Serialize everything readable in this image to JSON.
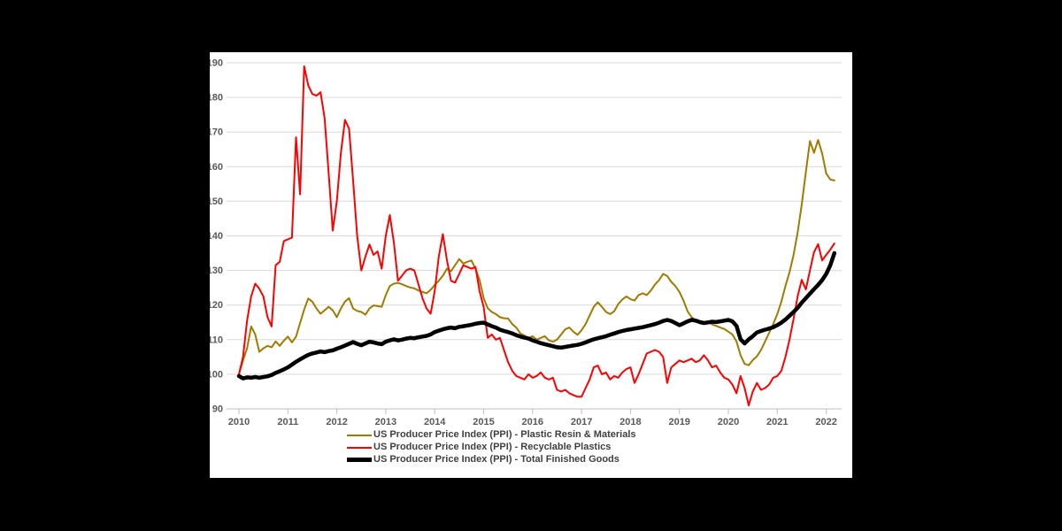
{
  "panel": {
    "background": "#ffffff",
    "outer_background": "#000000"
  },
  "axis": {
    "label_color": "#595959",
    "grid_color": "#d9d9d9",
    "axis_line_color": "#bfbfbf"
  },
  "chart_data": {
    "type": "line",
    "title": "",
    "xlabel": "",
    "ylabel": "",
    "ylim": [
      90,
      190
    ],
    "y_ticks": [
      90,
      100,
      110,
      120,
      130,
      140,
      150,
      160,
      170,
      180,
      190
    ],
    "x_tick_labels": [
      "2010",
      "2011",
      "2012",
      "2013",
      "2014",
      "2015",
      "2016",
      "2017",
      "2018",
      "2019",
      "2020",
      "2021",
      "2022"
    ],
    "x_monthly_start": "2010-01",
    "x_monthly_end": "2022-03",
    "grid": true,
    "legend_position": "bottom",
    "series": [
      {
        "name": "US Producer Price Index (PPI) - Plastic Resin & Materials",
        "color": "#A17A00",
        "width": 2,
        "monthly_values": [
          100,
          104,
          107.5,
          113.8,
          111.5,
          106.5,
          107.5,
          108.2,
          107.8,
          109.5,
          108.2,
          109.7,
          110.9,
          109.2,
          110.9,
          114.8,
          118.7,
          121.9,
          121.0,
          119.0,
          117.5,
          118.5,
          119.5,
          118.5,
          116.5,
          119.0,
          121.0,
          122.0,
          119.0,
          118.3,
          118.0,
          117.2,
          119.0,
          119.9,
          119.7,
          119.5,
          122.9,
          125.5,
          126.2,
          126.4,
          126.0,
          125.5,
          125.1,
          124.8,
          124.2,
          123.8,
          123.4,
          124.4,
          125.8,
          127.0,
          128.5,
          130.5,
          129.8,
          131.5,
          133.3,
          132.0,
          132.5,
          132.9,
          130.5,
          127.2,
          122.0,
          119.1,
          118.0,
          117.4,
          116.5,
          116.2,
          116.1,
          114.5,
          113.5,
          111.8,
          111.2,
          110.5,
          111.0,
          110.0,
          110.5,
          111.0,
          109.8,
          109.4,
          110.0,
          111.5,
          113.0,
          113.5,
          112.3,
          111.4,
          112.7,
          114.5,
          117.0,
          119.5,
          120.8,
          119.5,
          118.0,
          117.4,
          118.2,
          120.3,
          121.6,
          122.5,
          121.7,
          121.3,
          122.9,
          123.4,
          122.9,
          124.2,
          125.9,
          127.2,
          129.0,
          128.4,
          126.7,
          125.5,
          123.8,
          121.3,
          118.2,
          116.5,
          115.6,
          114.8,
          114.8,
          115.2,
          114.4,
          114.0,
          113.5,
          113.1,
          112.3,
          111.5,
          109.5,
          105.5,
          103.0,
          102.6,
          104.1,
          105.2,
          107.0,
          109.5,
          112.0,
          114.5,
          117.4,
          121.0,
          125.5,
          129.5,
          134.5,
          141.0,
          149.0,
          158.5,
          167.4,
          164.0,
          167.7,
          163.8,
          158.0,
          156.3,
          156.0
        ]
      },
      {
        "name": "US Producer Price Index (PPI) - Recyclable Plastics",
        "color": "#FF0000",
        "width": 2,
        "monthly_values": [
          100,
          105,
          115.5,
          122.5,
          126.2,
          124.7,
          122.5,
          116.5,
          113.8,
          131.5,
          132.5,
          138.5,
          139.0,
          139.5,
          168.5,
          152.0,
          189.0,
          183.5,
          181.0,
          180.5,
          181.5,
          174.0,
          158.0,
          141.5,
          150.0,
          164.0,
          173.5,
          171.0,
          156.0,
          140.0,
          130.0,
          134.0,
          137.5,
          134.5,
          135.5,
          130.5,
          140.0,
          146.0,
          138.0,
          127.0,
          128.5,
          130.0,
          130.5,
          130.0,
          126.0,
          122.0,
          119.0,
          117.5,
          124.0,
          134.0,
          140.5,
          133.0,
          127.0,
          126.5,
          129.0,
          131.5,
          131.0,
          130.5,
          131.0,
          124.0,
          119.5,
          110.5,
          111.5,
          110.0,
          110.5,
          107.0,
          103.5,
          101.0,
          99.5,
          99.0,
          98.5,
          100.0,
          99.0,
          99.5,
          100.5,
          99.0,
          98.5,
          99.0,
          95.5,
          95.0,
          95.5,
          94.5,
          94.0,
          93.5,
          93.5,
          96.0,
          98.5,
          102.0,
          102.5,
          100.0,
          100.5,
          98.5,
          99.5,
          99.0,
          100.5,
          101.5,
          102.0,
          97.5,
          100.0,
          103.0,
          106.0,
          106.5,
          107.0,
          106.5,
          105.0,
          97.5,
          102.0,
          103.0,
          104.0,
          103.5,
          104.0,
          104.5,
          103.5,
          104.0,
          105.5,
          104.0,
          102.0,
          102.5,
          100.5,
          99.0,
          98.5,
          97.0,
          94.5,
          99.5,
          96.0,
          91.0,
          95.0,
          97.5,
          95.5,
          96.0,
          97.0,
          99.0,
          99.5,
          101.0,
          105.0,
          110.0,
          116.0,
          122.5,
          127.3,
          124.5,
          130.0,
          135.3,
          137.6,
          132.9,
          134.5,
          136.0,
          137.8
        ]
      },
      {
        "name": "US Producer Price Index (PPI) - Total Finished Goods",
        "color": "#000000",
        "width": 4.5,
        "monthly_values": [
          99.5,
          98.8,
          99.1,
          99.0,
          99.2,
          99.0,
          99.2,
          99.4,
          99.8,
          100.4,
          100.9,
          101.4,
          102.0,
          102.8,
          103.6,
          104.3,
          105.0,
          105.6,
          106.0,
          106.3,
          106.6,
          106.4,
          106.7,
          106.9,
          107.4,
          107.8,
          108.3,
          108.8,
          109.3,
          108.8,
          108.4,
          108.9,
          109.4,
          109.2,
          108.9,
          108.7,
          109.4,
          109.8,
          110.1,
          109.8,
          110.0,
          110.3,
          110.5,
          110.4,
          110.7,
          110.9,
          111.1,
          111.5,
          112.2,
          112.6,
          113.0,
          113.3,
          113.5,
          113.3,
          113.7,
          113.9,
          114.1,
          114.3,
          114.6,
          114.8,
          114.9,
          114.4,
          113.9,
          113.5,
          112.9,
          112.5,
          112.2,
          111.8,
          111.3,
          110.9,
          110.6,
          110.3,
          109.8,
          109.4,
          109.0,
          108.7,
          108.4,
          108.1,
          107.8,
          107.7,
          107.9,
          108.1,
          108.3,
          108.5,
          108.8,
          109.2,
          109.7,
          110.1,
          110.4,
          110.7,
          111.0,
          111.4,
          111.8,
          112.2,
          112.5,
          112.8,
          113.0,
          113.2,
          113.4,
          113.6,
          113.9,
          114.2,
          114.5,
          114.9,
          115.4,
          115.7,
          115.4,
          114.8,
          114.2,
          114.7,
          115.3,
          115.7,
          115.5,
          115.1,
          114.8,
          115.0,
          115.2,
          115.1,
          115.3,
          115.5,
          115.7,
          115.3,
          114.0,
          110.1,
          108.9,
          110.1,
          111.0,
          112.1,
          112.5,
          112.9,
          113.2,
          113.6,
          114.2,
          114.9,
          115.8,
          116.9,
          118.0,
          119.2,
          120.7,
          122.0,
          123.3,
          124.6,
          125.8,
          127.2,
          129.0,
          131.5,
          135.0
        ]
      }
    ]
  }
}
